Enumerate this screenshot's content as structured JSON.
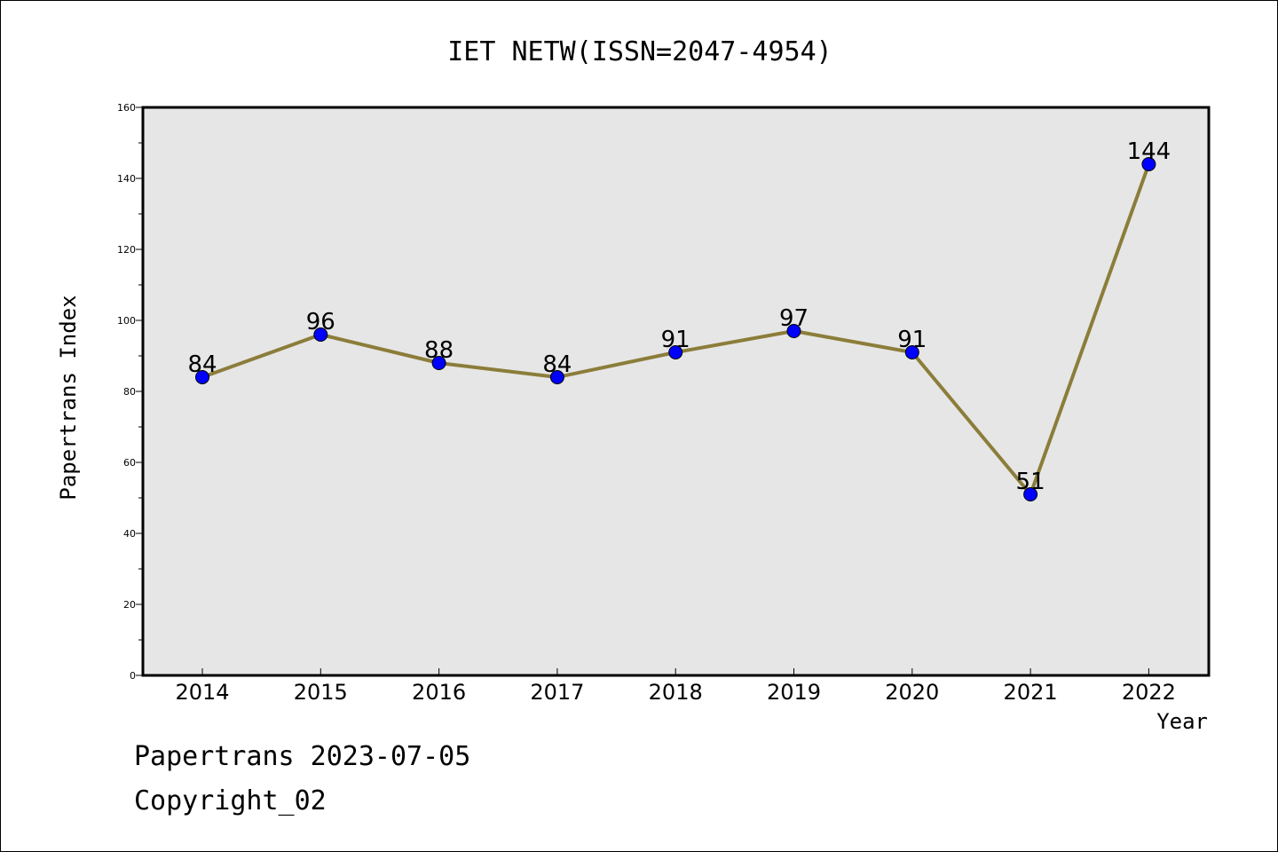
{
  "chart_data": {
    "type": "line",
    "title": "IET NETW(ISSN=2047-4954)",
    "xlabel": "Year",
    "ylabel": "Papertrans Index",
    "categories": [
      "2014",
      "2015",
      "2016",
      "2017",
      "2018",
      "2019",
      "2020",
      "2021",
      "2022"
    ],
    "series": [
      {
        "values": [
          84,
          96,
          88,
          84,
          91,
          97,
          91,
          51,
          144
        ]
      }
    ],
    "ylim": [
      0,
      160
    ],
    "yticks": [
      0,
      20,
      40,
      60,
      80,
      100,
      120,
      140,
      160
    ],
    "grid": false,
    "line_color": "#8b7d3a",
    "marker_color": "#0000ff",
    "plot_background": "#e6e6e6"
  },
  "footer": {
    "line1": "Papertrans 2023-07-05",
    "line2": "Copyright_02"
  }
}
